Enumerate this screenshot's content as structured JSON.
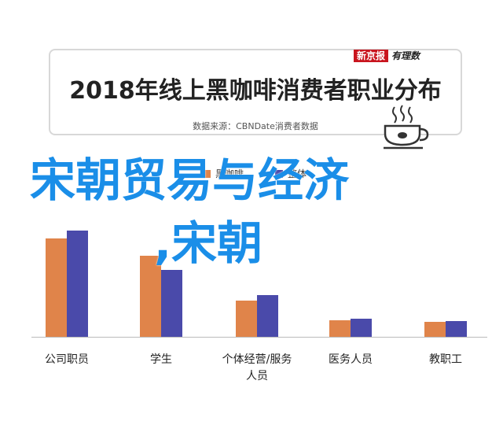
{
  "header": {
    "title": "2018年线上黑咖啡消费者职业分布",
    "source": "数据来源：CBNDate消费者数据",
    "brand_red": "新京报",
    "brand_black": "有理数"
  },
  "overlay": {
    "line1": "宋朝贸易与经济",
    "line2": ",宋朝"
  },
  "colors": {
    "series1": "#e0844a",
    "series2": "#4a4aaa",
    "overlay": "#1a8ee8"
  },
  "icons": {
    "cup": "coffee-cup-icon"
  },
  "chart_data": {
    "type": "bar",
    "title": "2018年线上黑咖啡消费者职业分布",
    "categories": [
      "公司职员",
      "学生",
      "个体经营/服务人员",
      "医务人员",
      "教职工"
    ],
    "series": [
      {
        "name": "黑咖啡",
        "values": [
          125,
          103,
          46,
          21,
          19
        ]
      },
      {
        "name": "整体",
        "values": [
          135,
          85,
          53,
          23,
          20
        ]
      }
    ],
    "ylim": [
      0,
      140
    ],
    "grid": false,
    "legend": "top-center"
  }
}
